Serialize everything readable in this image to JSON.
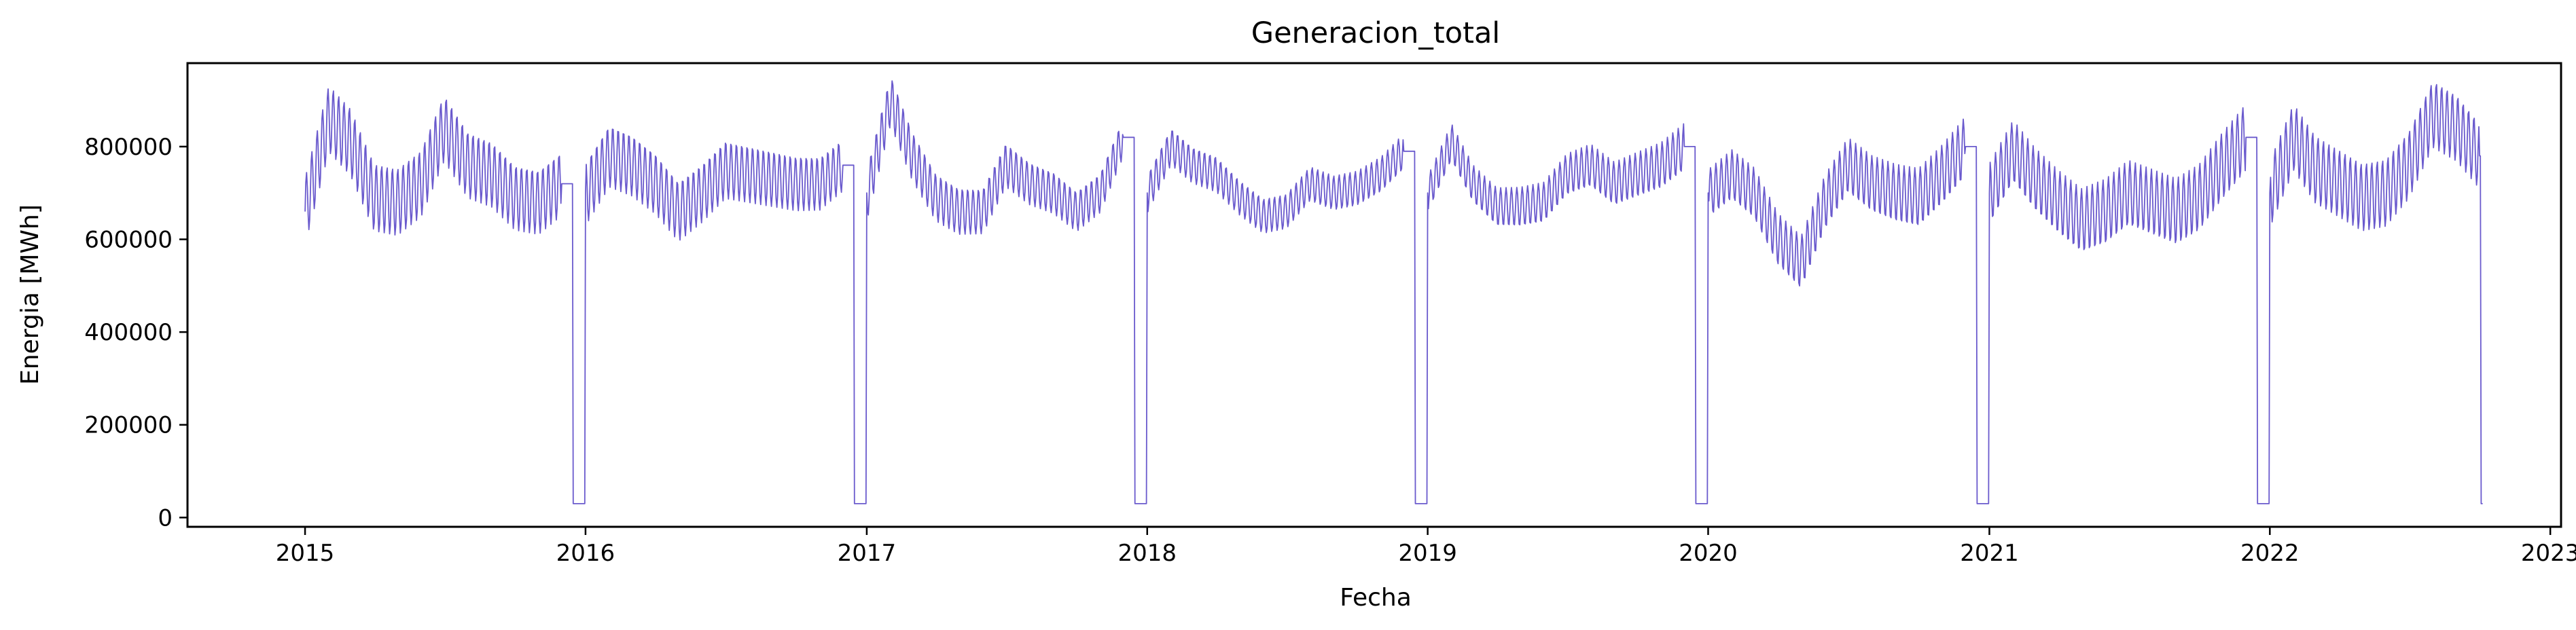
{
  "chart_data": {
    "type": "line",
    "title": "Generacion_total",
    "xlabel": "Fecha",
    "ylabel": "Energia [MWh]",
    "x_range": [
      "2014-08-01",
      "2023-01-15"
    ],
    "ylim": [
      -20000,
      980000
    ],
    "x_ticks": [
      "2015",
      "2016",
      "2017",
      "2018",
      "2019",
      "2020",
      "2021",
      "2022",
      "2023"
    ],
    "y_ticks": [
      "0",
      "200000",
      "400000",
      "600000",
      "800000"
    ],
    "y_tick_values": [
      0,
      200000,
      400000,
      600000,
      800000
    ],
    "grid": false,
    "legend": "none",
    "line_color": "#6a5acd",
    "series": [
      {
        "x": [
          "2015-01-01",
          "2015-02-01",
          "2015-03-01",
          "2015-04-01",
          "2015-05-01",
          "2015-06-01",
          "2015-07-01",
          "2015-08-01",
          "2015-09-01",
          "2015-10-01",
          "2015-11-01",
          "2015-12-01",
          "2015-12-31",
          "2016-01-02",
          "2016-02-01",
          "2016-03-01",
          "2016-04-01",
          "2016-05-01",
          "2016-06-01",
          "2016-07-01",
          "2016-08-01",
          "2016-09-01",
          "2016-10-01",
          "2016-11-01",
          "2016-12-01",
          "2016-12-31",
          "2017-01-02",
          "2017-02-01",
          "2017-03-01",
          "2017-04-01",
          "2017-05-01",
          "2017-06-01",
          "2017-07-01",
          "2017-08-01",
          "2017-09-01",
          "2017-10-01",
          "2017-11-01",
          "2017-12-01",
          "2017-12-31",
          "2018-01-02",
          "2018-02-01",
          "2018-03-01",
          "2018-04-01",
          "2018-05-01",
          "2018-06-01",
          "2018-07-01",
          "2018-08-01",
          "2018-09-01",
          "2018-10-01",
          "2018-11-01",
          "2018-12-01",
          "2018-12-31",
          "2019-01-02",
          "2019-02-01",
          "2019-03-01",
          "2019-04-01",
          "2019-05-01",
          "2019-06-01",
          "2019-07-01",
          "2019-08-01",
          "2019-09-01",
          "2019-10-01",
          "2019-11-01",
          "2019-12-01",
          "2019-12-31",
          "2020-01-02",
          "2020-02-01",
          "2020-03-01",
          "2020-04-01",
          "2020-05-01",
          "2020-06-01",
          "2020-07-01",
          "2020-08-01",
          "2020-09-01",
          "2020-10-01",
          "2020-11-01",
          "2020-12-01",
          "2020-12-31",
          "2021-01-02",
          "2021-02-01",
          "2021-03-01",
          "2021-04-01",
          "2021-05-01",
          "2021-06-01",
          "2021-07-01",
          "2021-08-01",
          "2021-09-01",
          "2021-10-01",
          "2021-11-01",
          "2021-12-01",
          "2021-12-31",
          "2022-01-02",
          "2022-02-01",
          "2022-03-01",
          "2022-04-01",
          "2022-05-01",
          "2022-06-01",
          "2022-07-01",
          "2022-08-01",
          "2022-09-01",
          "2022-10-01",
          "2022-10-05"
        ],
        "y": [
          660000,
          860000,
          810000,
          690000,
          680000,
          720000,
          840000,
          760000,
          740000,
          690000,
          680000,
          720000,
          30000,
          700000,
          780000,
          760000,
          720000,
          660000,
          700000,
          750000,
          740000,
          730000,
          720000,
          720000,
          760000,
          30000,
          700000,
          900000,
          780000,
          690000,
          660000,
          660000,
          760000,
          720000,
          700000,
          660000,
          700000,
          820000,
          30000,
          700000,
          800000,
          760000,
          740000,
          690000,
          650000,
          660000,
          720000,
          700000,
          710000,
          740000,
          790000,
          30000,
          700000,
          810000,
          720000,
          670000,
          670000,
          680000,
          740000,
          760000,
          720000,
          740000,
          760000,
          800000,
          30000,
          700000,
          740000,
          700000,
          600000,
          550000,
          680000,
          760000,
          720000,
          700000,
          690000,
          740000,
          800000,
          30000,
          700000,
          790000,
          730000,
          680000,
          640000,
          660000,
          700000,
          680000,
          660000,
          690000,
          760000,
          820000,
          30000,
          700000,
          820000,
          750000,
          720000,
          690000,
          700000,
          760000,
          870000,
          840000,
          780000,
          30000
        ]
      }
    ]
  }
}
